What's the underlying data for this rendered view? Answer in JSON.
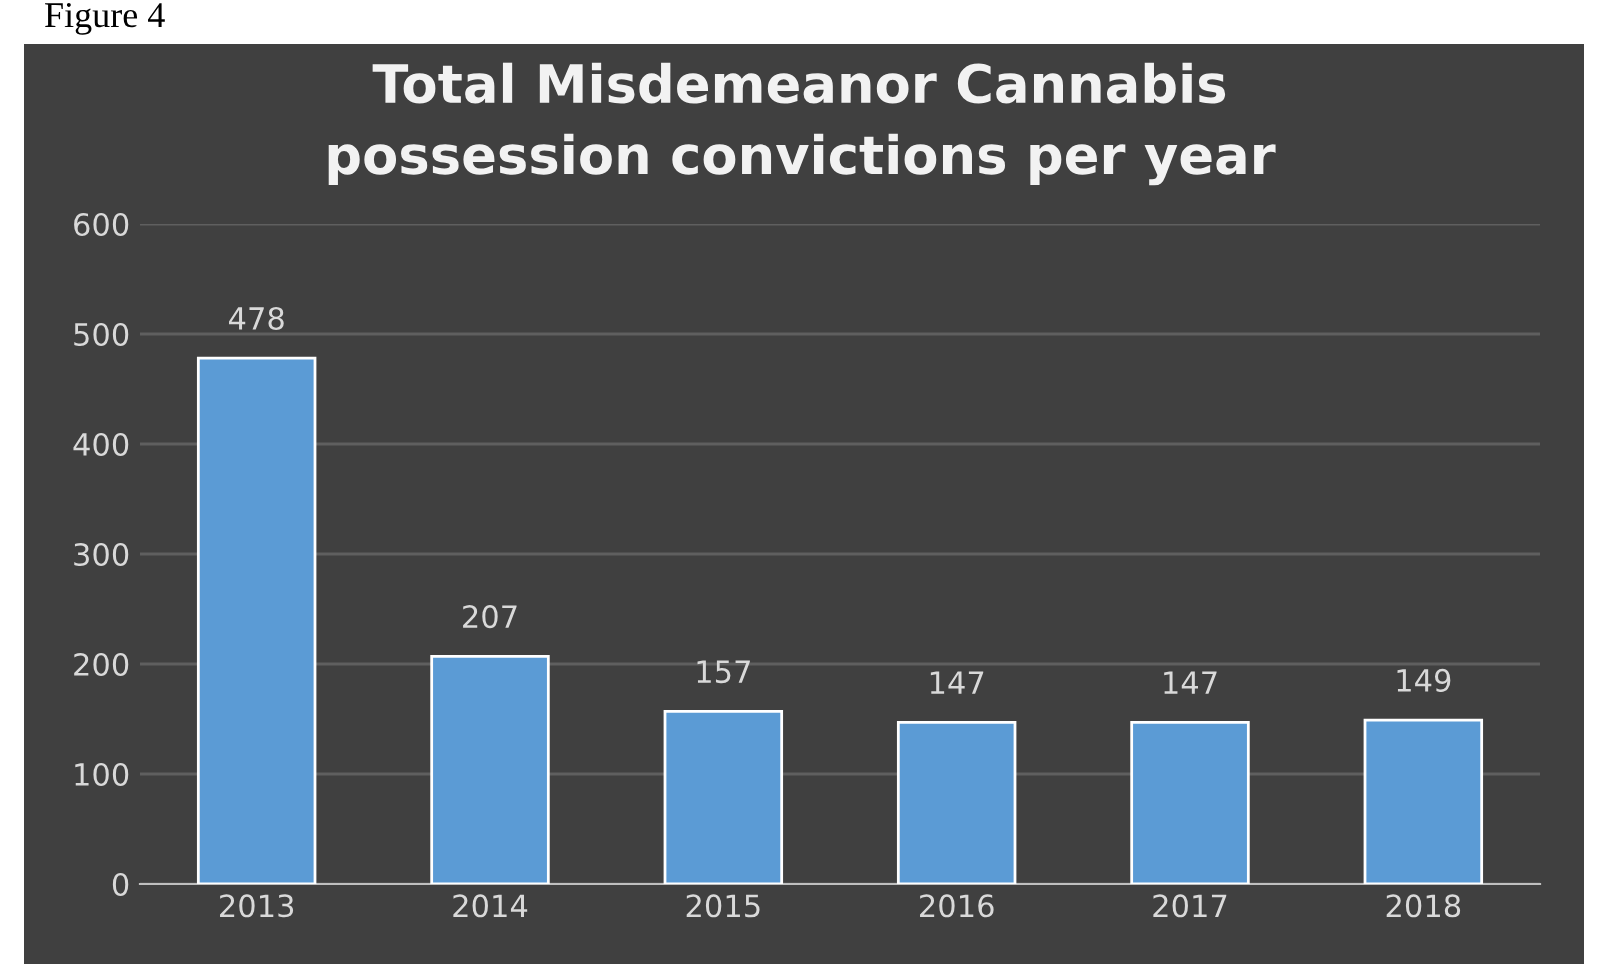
{
  "chart_data": {
    "type": "bar",
    "title": "Total Misdemeanor Cannabis\npossession convictions per year",
    "annotations": [
      "Figure 4"
    ],
    "categories": [
      "2013",
      "2014",
      "2015",
      "2016",
      "2017",
      "2018"
    ],
    "values": [
      478,
      207,
      157,
      147,
      147,
      149
    ],
    "color": "#5b9bd5",
    "ylim": [
      0,
      600
    ],
    "yticks": [
      0,
      100,
      200,
      300,
      400,
      500,
      600
    ],
    "grid": "y",
    "data_labels": true
  }
}
